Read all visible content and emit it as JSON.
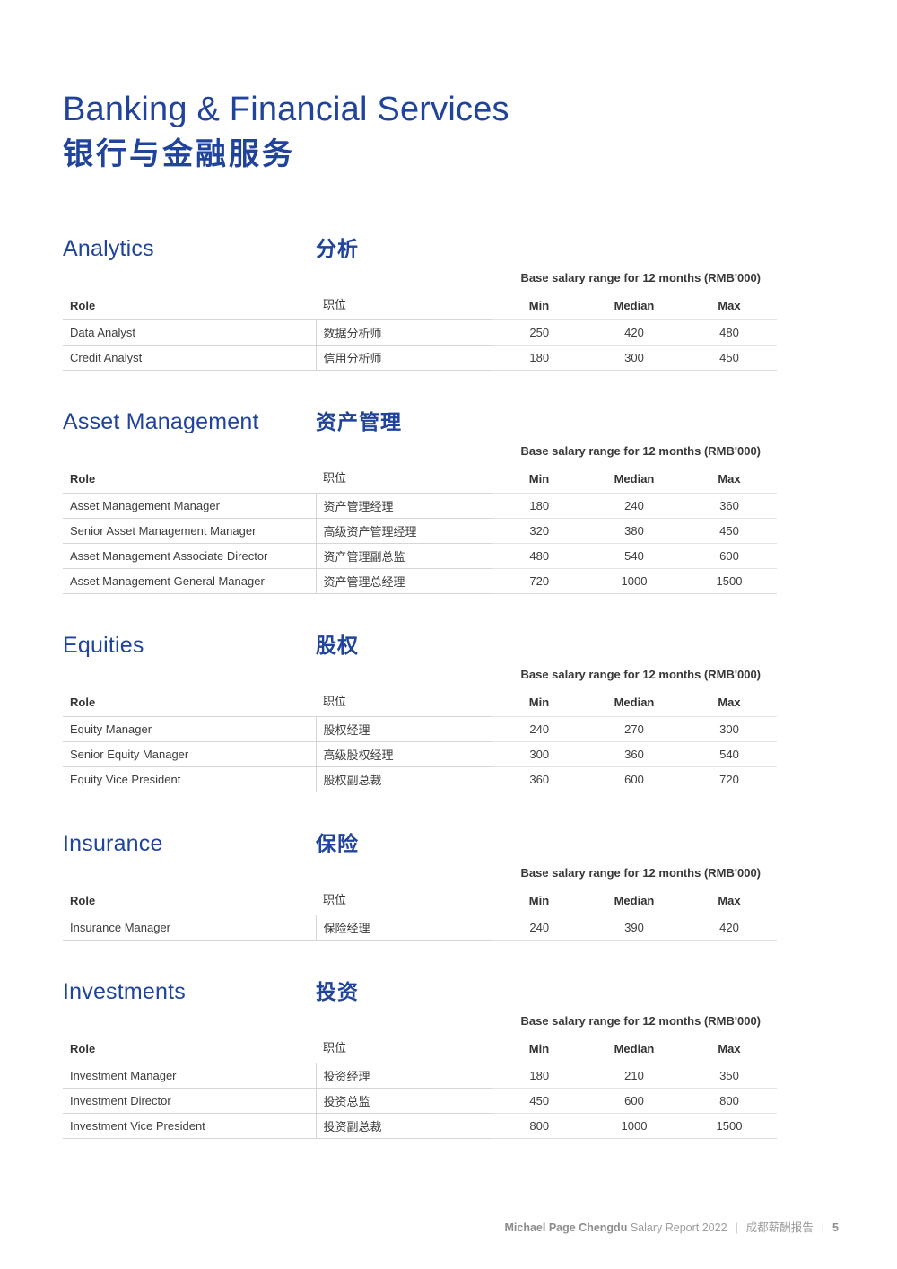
{
  "header": {
    "title_en": "Banking & Financial Services",
    "title_zh": "银行与金融服务"
  },
  "columns": {
    "note": "Base salary range for 12 months (RMB'000)",
    "role": "Role",
    "role_zh": "职位",
    "min": "Min",
    "median": "Median",
    "max": "Max"
  },
  "sections": [
    {
      "title_en": "Analytics",
      "title_zh": "分析",
      "rows": [
        {
          "role": "Data Analyst",
          "role_zh": "数据分析师",
          "min": "250",
          "median": "420",
          "max": "480"
        },
        {
          "role": "Credit Analyst",
          "role_zh": "信用分析师",
          "min": "180",
          "median": "300",
          "max": "450"
        }
      ]
    },
    {
      "title_en": "Asset Management",
      "title_zh": "资产管理",
      "rows": [
        {
          "role": "Asset Management Manager",
          "role_zh": "资产管理经理",
          "min": "180",
          "median": "240",
          "max": "360"
        },
        {
          "role": "Senior Asset Management Manager",
          "role_zh": "高级资产管理经理",
          "min": "320",
          "median": "380",
          "max": "450"
        },
        {
          "role": "Asset Management Associate Director",
          "role_zh": "资产管理副总监",
          "min": "480",
          "median": "540",
          "max": "600"
        },
        {
          "role": "Asset Management General Manager",
          "role_zh": "资产管理总经理",
          "min": "720",
          "median": "1000",
          "max": "1500"
        }
      ]
    },
    {
      "title_en": "Equities",
      "title_zh": "股权",
      "rows": [
        {
          "role": "Equity Manager",
          "role_zh": "股权经理",
          "min": "240",
          "median": "270",
          "max": "300"
        },
        {
          "role": "Senior Equity Manager",
          "role_zh": "高级股权经理",
          "min": "300",
          "median": "360",
          "max": "540"
        },
        {
          "role": "Equity Vice President",
          "role_zh": "股权副总裁",
          "min": "360",
          "median": "600",
          "max": "720"
        }
      ]
    },
    {
      "title_en": "Insurance",
      "title_zh": "保险",
      "rows": [
        {
          "role": "Insurance Manager",
          "role_zh": "保险经理",
          "min": "240",
          "median": "390",
          "max": "420"
        }
      ]
    },
    {
      "title_en": "Investments",
      "title_zh": "投资",
      "rows": [
        {
          "role": "Investment Manager",
          "role_zh": "投资经理",
          "min": "180",
          "median": "210",
          "max": "350"
        },
        {
          "role": "Investment Director",
          "role_zh": "投资总监",
          "min": "450",
          "median": "600",
          "max": "800"
        },
        {
          "role": "Investment Vice President",
          "role_zh": "投资副总裁",
          "min": "800",
          "median": "1000",
          "max": "1500"
        }
      ]
    }
  ],
  "footer": {
    "brand": "Michael Page Chengdu",
    "report": "Salary Report 2022",
    "divider": "|",
    "report_zh": "成都薪酬报告",
    "page": "5"
  },
  "colors": {
    "heading_blue": "#20449b",
    "body_text": "#3d3d3d",
    "rule_gray": "#d6d6d6",
    "footer_gray": "#9c9c9c"
  }
}
